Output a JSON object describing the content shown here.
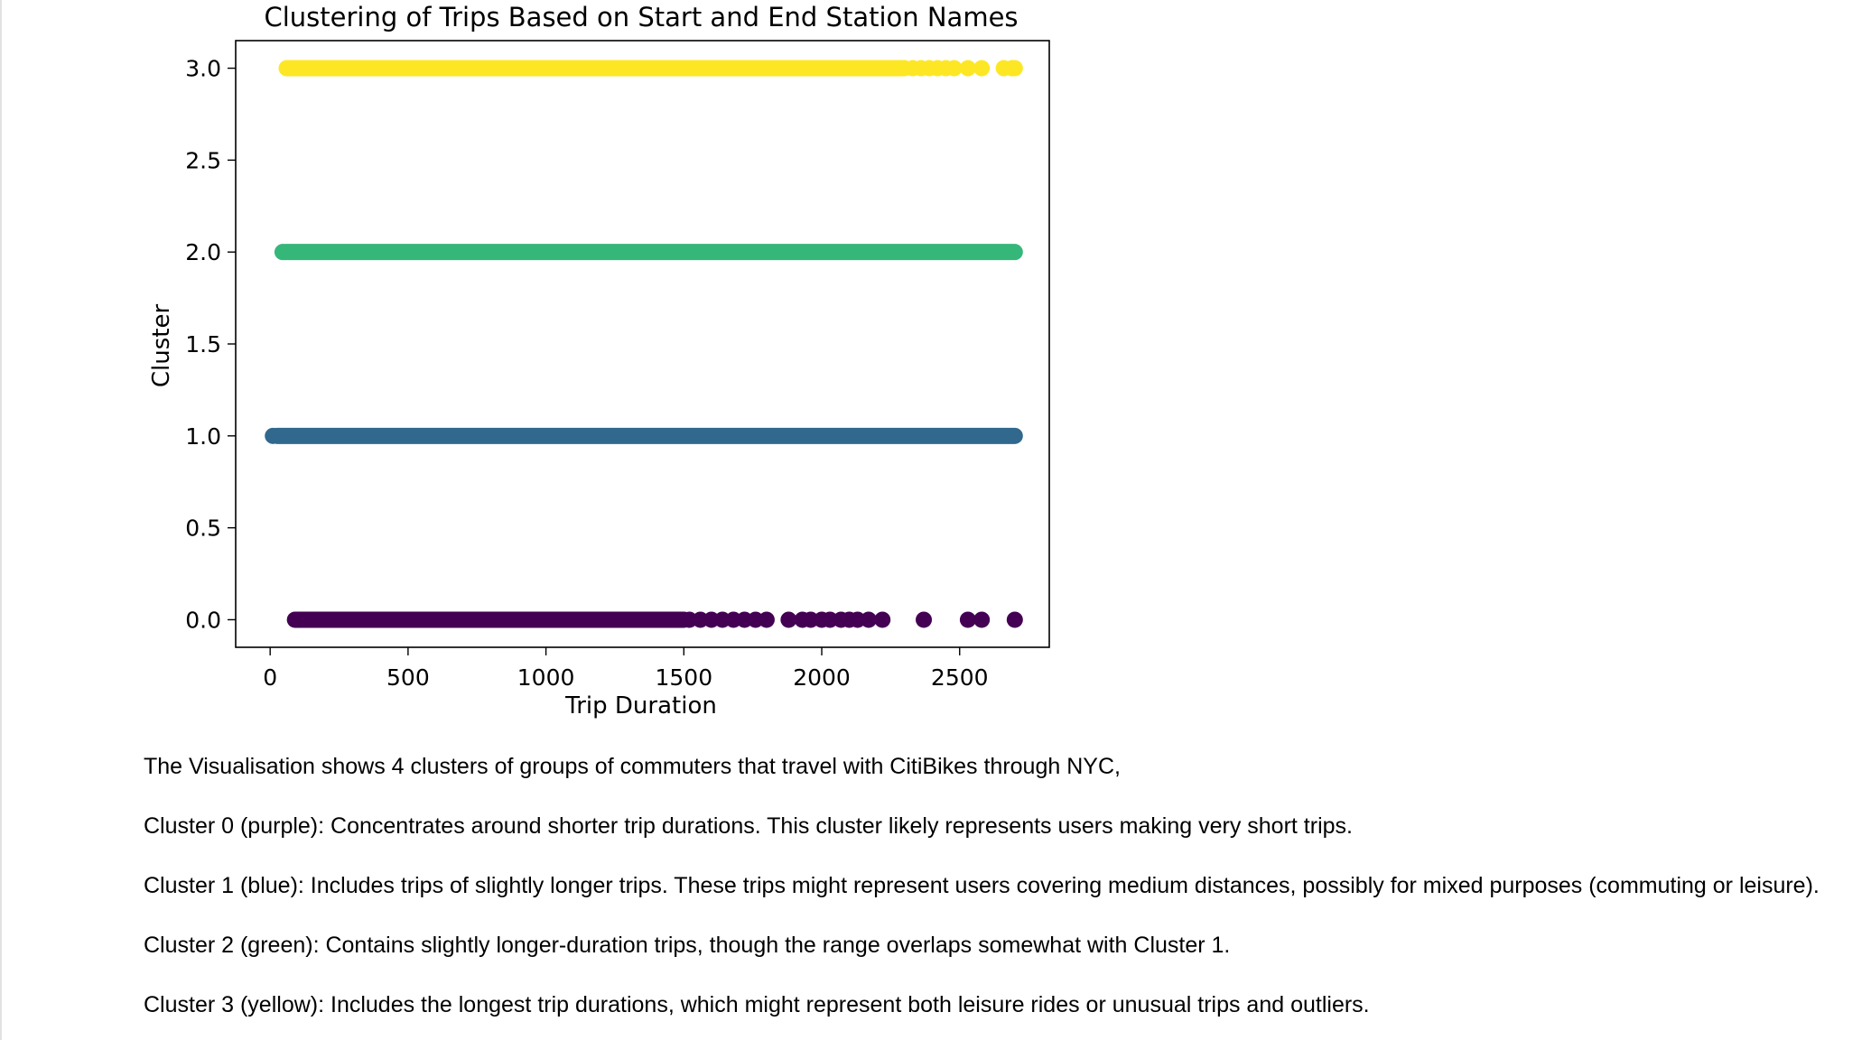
{
  "chart_data": {
    "type": "scatter",
    "title": "Clustering of Trips Based on Start and End Station Names",
    "xlabel": "Trip Duration",
    "ylabel": "Cluster",
    "xlim": [
      -125,
      2825
    ],
    "ylim": [
      -0.15,
      3.15
    ],
    "x_ticks": [
      0,
      500,
      1000,
      1500,
      2000,
      2500
    ],
    "x_tick_labels": [
      "0",
      "500",
      "1000",
      "1500",
      "2000",
      "2500"
    ],
    "y_ticks": [
      0.0,
      0.5,
      1.0,
      1.5,
      2.0,
      2.5,
      3.0
    ],
    "y_tick_labels": [
      "0.0",
      "0.5",
      "1.0",
      "1.5",
      "2.0",
      "2.5",
      "3.0"
    ],
    "grid": false,
    "series": [
      {
        "cluster": 0,
        "color": "#440154",
        "y": 0,
        "x_dense_range": [
          90,
          1500
        ],
        "x": [
          1520,
          1560,
          1600,
          1640,
          1680,
          1720,
          1760,
          1800,
          1880,
          1930,
          1960,
          2000,
          2030,
          2070,
          2100,
          2130,
          2170,
          2220,
          2370,
          2530,
          2580,
          2700
        ]
      },
      {
        "cluster": 1,
        "color": "#31688e",
        "y": 1,
        "x_dense_range": [
          25,
          2700
        ],
        "x": [
          10
        ]
      },
      {
        "cluster": 2,
        "color": "#35b779",
        "y": 2,
        "x_dense_range": [
          45,
          2700
        ],
        "x": []
      },
      {
        "cluster": 3,
        "color": "#fde725",
        "y": 3,
        "x_dense_range": [
          60,
          2300
        ],
        "x": [
          2330,
          2360,
          2390,
          2420,
          2450,
          2480,
          2530,
          2580,
          2660,
          2690,
          2700
        ]
      }
    ]
  },
  "notes": [
    "The Visualisation shows 4 clusters of groups of commuters that travel with CitiBikes through NYC,",
    "Cluster 0 (purple): Concentrates around shorter trip durations. This cluster likely represents users making very short trips.",
    "Cluster 1 (blue): Includes trips of slightly longer trips. These trips might represent users covering medium distances, possibly for mixed purposes (commuting or leisure).",
    "Cluster 2 (green): Contains slightly longer-duration trips, though the range overlaps somewhat with Cluster 1.",
    "Cluster 3 (yellow): Includes the longest trip durations, which might represent both leisure rides or unusual trips and outliers."
  ]
}
